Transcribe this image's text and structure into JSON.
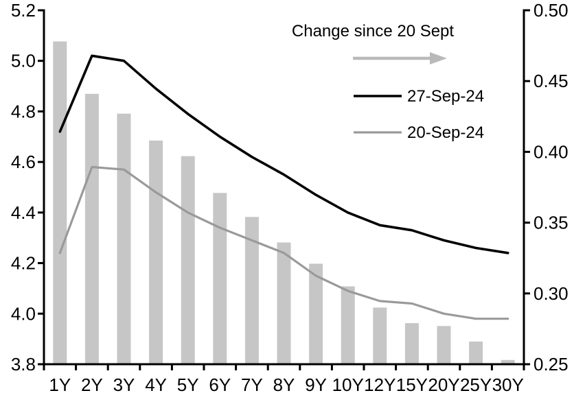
{
  "chart_data": {
    "type": "combo",
    "title": "",
    "xlabel": "",
    "ylabel": "",
    "grid": false,
    "categories": [
      "1Y",
      "2Y",
      "3Y",
      "4Y",
      "5Y",
      "6Y",
      "7Y",
      "8Y",
      "9Y",
      "10Y",
      "12Y",
      "15Y",
      "20Y",
      "25Y",
      "30Y"
    ],
    "series": [
      {
        "name": "Change since 20 Sept",
        "type": "bar",
        "axis": "right",
        "color": "#c6c6c6",
        "values": [
          0.478,
          0.441,
          0.427,
          0.408,
          0.397,
          0.371,
          0.354,
          0.336,
          0.321,
          0.305,
          0.29,
          0.279,
          0.277,
          0.266,
          0.253
        ]
      },
      {
        "name": "27-Sep-24",
        "type": "line",
        "axis": "left",
        "color": "#000000",
        "values": [
          4.72,
          5.02,
          5.0,
          4.89,
          4.79,
          4.7,
          4.62,
          4.55,
          4.47,
          4.4,
          4.35,
          4.33,
          4.29,
          4.26,
          4.24
        ]
      },
      {
        "name": "20-Sep-24",
        "type": "line",
        "axis": "left",
        "color": "#9a9a9a",
        "values": [
          4.24,
          4.58,
          4.57,
          4.48,
          4.4,
          4.34,
          4.29,
          4.24,
          4.15,
          4.09,
          4.05,
          4.04,
          4.0,
          3.98,
          3.98
        ]
      }
    ],
    "left_axis": {
      "min": 3.8,
      "max": 5.2,
      "ticks": [
        "5.2",
        "5.0",
        "4.8",
        "4.6",
        "4.4",
        "4.2",
        "4.0",
        "3.8"
      ]
    },
    "right_axis": {
      "min": 0.25,
      "max": 0.5,
      "ticks": [
        "0.50",
        "0.45",
        "0.40",
        "0.35",
        "0.30",
        "0.25"
      ]
    },
    "legend": {
      "position": "top-right",
      "title": "Change since 20 Sept",
      "arrow_icon": "right-arrow",
      "arrow_color": "#b9b9b9",
      "series1_label": "27-Sep-24",
      "series2_label": "20-Sep-24"
    }
  }
}
